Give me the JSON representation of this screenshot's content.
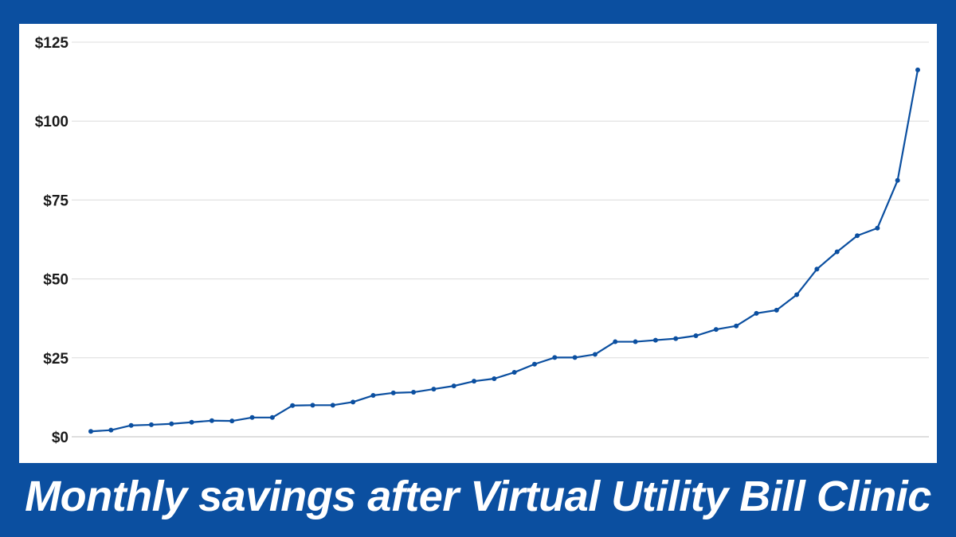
{
  "chart_data": {
    "type": "line",
    "title": "Monthly savings after Virtual Utility Bill Clinic",
    "xlabel": "",
    "ylabel": "",
    "ylim": [
      0,
      125
    ],
    "yticks": [
      "$0",
      "$25",
      "$50",
      "$75",
      "$100",
      "$125"
    ],
    "ytick_values": [
      0,
      25,
      50,
      75,
      100,
      125
    ],
    "grid": true,
    "legend": "none",
    "line_color": "#0b4fa0",
    "series": [
      {
        "values": [
          1.7,
          2.1,
          3.6,
          3.8,
          4.1,
          4.6,
          5.1,
          5.0,
          6.1,
          6.1,
          9.9,
          10.0,
          10.0,
          11.0,
          13.1,
          13.9,
          14.1,
          15.1,
          16.1,
          17.6,
          18.4,
          20.4,
          23.0,
          25.1,
          25.1,
          26.1,
          30.1,
          30.1,
          30.6,
          31.1,
          32.0,
          34.0,
          35.1,
          39.1,
          40.1,
          45.0,
          53.1,
          58.6,
          63.7,
          66.1,
          81.2,
          116.2
        ]
      }
    ]
  }
}
